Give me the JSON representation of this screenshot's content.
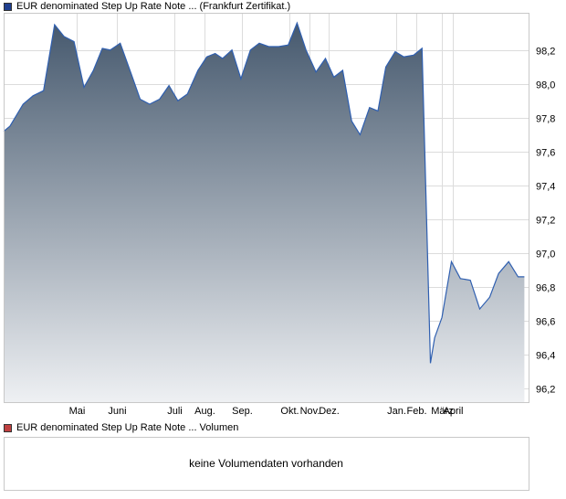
{
  "chart_data": {
    "type": "area",
    "legend_price": "EUR denominated Step Up Rate Note ... (Frankfurt Zertifikat.)",
    "legend_volume": "EUR denominated Step Up Rate Note ... Volumen",
    "no_volume_text": "keine Volumendaten vorhanden",
    "ylim": [
      96.12,
      98.42
    ],
    "yticks": [
      "98,2",
      "98,0",
      "97,8",
      "97,6",
      "97,4",
      "97,2",
      "97,0",
      "96,8",
      "96,6",
      "96,4",
      "96,2"
    ],
    "ytick_values": [
      98.2,
      98.0,
      97.8,
      97.6,
      97.4,
      97.2,
      97.0,
      96.8,
      96.6,
      96.4,
      96.2
    ],
    "xlim": [
      0,
      100
    ],
    "xticks": [
      {
        "label": "Mai",
        "x": 13.9
      },
      {
        "label": "Juni",
        "x": 21.5
      },
      {
        "label": "Juli",
        "x": 32.5
      },
      {
        "label": "Aug.",
        "x": 38.3
      },
      {
        "label": "Sep.",
        "x": 45.4
      },
      {
        "label": "Okt.",
        "x": 54.4
      },
      {
        "label": "Nov.",
        "x": 58.3
      },
      {
        "label": "Dez.",
        "x": 61.9
      },
      {
        "label": "Jan.",
        "x": 74.7
      },
      {
        "label": "Feb.",
        "x": 78.6
      },
      {
        "label": "März",
        "x": 83.5
      },
      {
        "label": "April",
        "x": 85.6
      }
    ],
    "series": [
      {
        "x": [
          0,
          1.2,
          3.7,
          5.6,
          7.6,
          9.7,
          11.5,
          13.4,
          15.3,
          17.1,
          18.8,
          20.3,
          22.2,
          24.3,
          26.0,
          27.8,
          29.7,
          31.5,
          33.2,
          35.0,
          37.0,
          38.7,
          40.3,
          41.7,
          43.5,
          45.2,
          47.0,
          48.7,
          50.5,
          52.4,
          54.2,
          55.9,
          57.6,
          59.5,
          61.3,
          62.9,
          64.6,
          66.3,
          67.9,
          69.7,
          71.3,
          72.8,
          74.6,
          76.2,
          78.1,
          79.7,
          81.3,
          82.1,
          83.5,
          85.3,
          87.0,
          88.9,
          90.7,
          92.6,
          94.3,
          96.2,
          98.0,
          99.2
        ],
        "y": [
          97.72,
          97.75,
          97.88,
          97.93,
          97.96,
          98.35,
          98.28,
          98.25,
          97.98,
          98.08,
          98.21,
          98.2,
          98.24,
          98.06,
          97.91,
          97.88,
          97.91,
          97.99,
          97.9,
          97.94,
          98.08,
          98.16,
          98.18,
          98.15,
          98.2,
          98.03,
          98.2,
          98.24,
          98.22,
          98.22,
          98.23,
          98.36,
          98.2,
          98.07,
          98.15,
          98.04,
          98.08,
          97.78,
          97.7,
          97.86,
          97.84,
          98.1,
          98.19,
          98.16,
          98.17,
          98.21,
          96.35,
          96.5,
          96.62,
          96.95,
          96.85,
          96.84,
          96.67,
          96.74,
          96.88,
          96.95,
          96.86,
          96.86
        ]
      }
    ],
    "colors": {
      "line": "#2f5fb0",
      "fill_top": "#46596e",
      "fill_bottom": "#eef0f3",
      "grid": "#dcdcdc",
      "frame": "#c8c8c8"
    }
  }
}
